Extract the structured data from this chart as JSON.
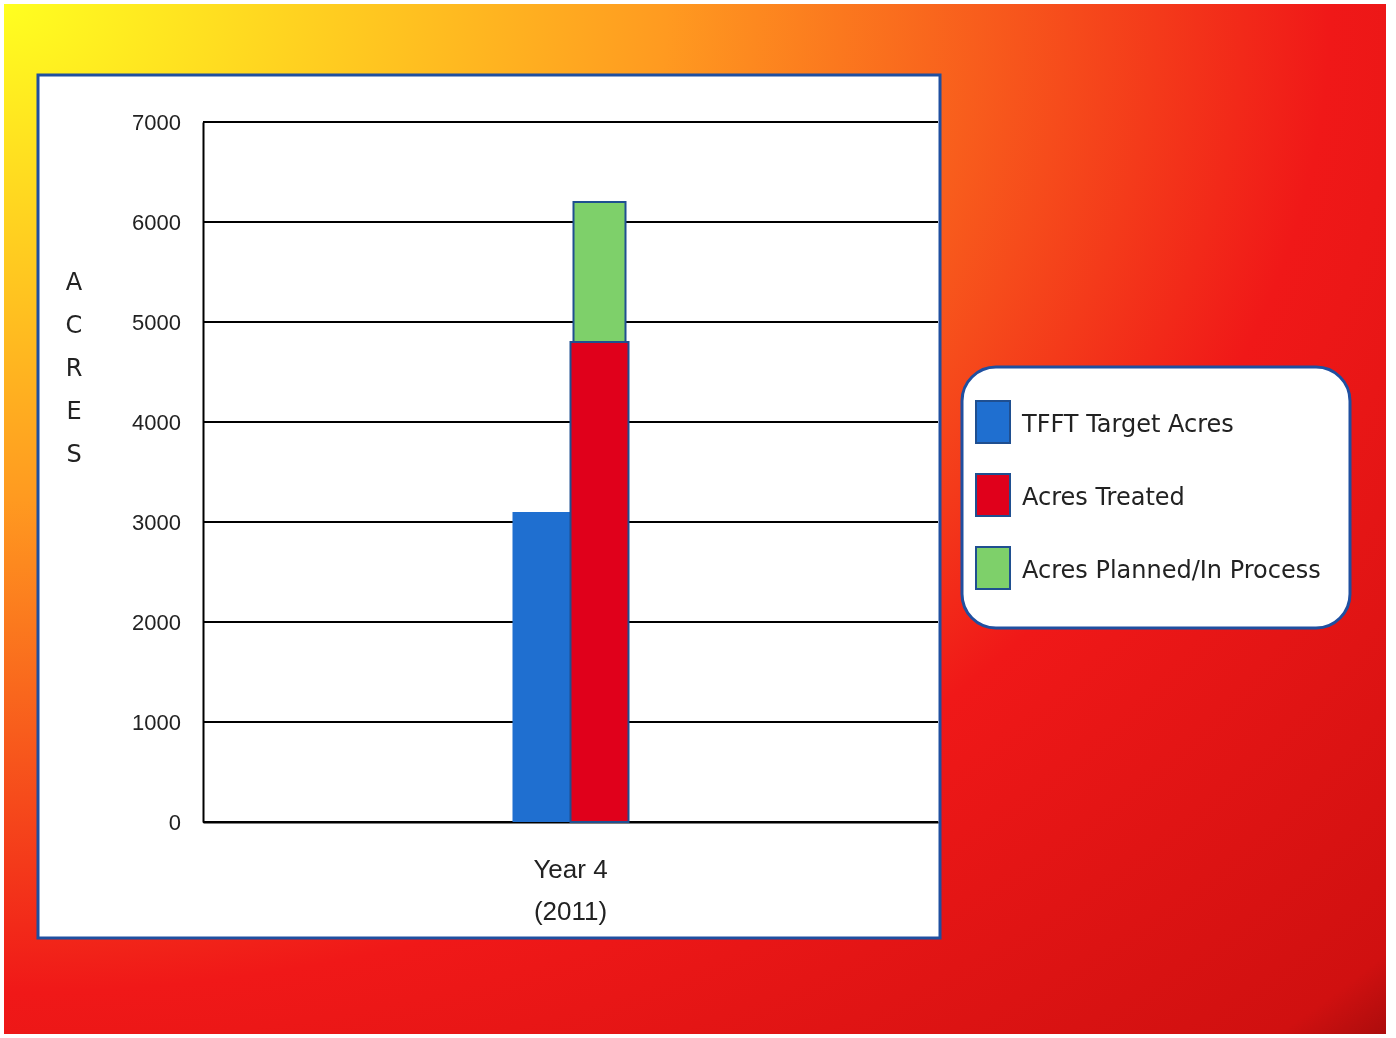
{
  "chart_data": {
    "type": "bar",
    "ylabel": "ACRES",
    "categories": [
      "Year 4\n(2011)"
    ],
    "series": [
      {
        "name": "TFFT Target Acres",
        "color": "#1f6fd0",
        "values": [
          3100
        ],
        "base": [
          0
        ]
      },
      {
        "name": "Acres Treated",
        "color": "#e0001b",
        "values": [
          4800
        ]
      },
      {
        "name": "Acres Planned/In Process",
        "color": "#7ed06a",
        "values": [
          1400
        ],
        "base": [
          4800
        ]
      }
    ],
    "ylim": [
      0,
      7000
    ],
    "yticks": [
      0,
      1000,
      2000,
      3000,
      4000,
      5000,
      6000,
      7000
    ],
    "grid": "y",
    "legend": "right"
  }
}
